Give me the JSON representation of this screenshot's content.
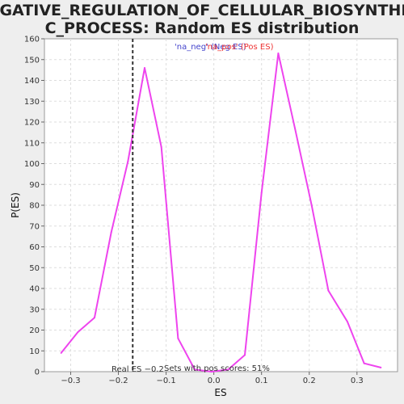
{
  "chart_data": {
    "type": "line",
    "title_lines": [
      "NEGATIVE_REGULATION_OF_CELLULAR_BIOSYNTHETI",
      "C_PROCESS: Random ES distribution"
    ],
    "xlabel": "ES",
    "ylabel": "P(ES)",
    "xlim": [
      -0.355,
      0.385
    ],
    "ylim": [
      0,
      160
    ],
    "xticks": [
      -0.3,
      -0.2,
      -0.1,
      0.0,
      0.1,
      0.2,
      0.3
    ],
    "xtick_labels": [
      "−0.3",
      "−0.2",
      "−0.1",
      "0.0",
      "0.1",
      "0.2",
      "0.3"
    ],
    "yticks": [
      0,
      10,
      20,
      30,
      40,
      50,
      60,
      70,
      80,
      90,
      100,
      110,
      120,
      130,
      140,
      150,
      160
    ],
    "ytick_labels": [
      "0",
      "10",
      "20",
      "30",
      "40",
      "50",
      "60",
      "70",
      "80",
      "90",
      "100",
      "110",
      "120",
      "130",
      "140",
      "150",
      "160"
    ],
    "grid": true,
    "legend": {
      "placement": "top",
      "entries": [
        {
          "text": "'na_neg' (Neg ES)",
          "color": "#4444cc"
        },
        {
          "text": "'na_pos' (Pos ES)",
          "color": "#ee3333"
        }
      ]
    },
    "series": [
      {
        "color": "#ee44ee",
        "x": [
          -0.32,
          -0.285,
          -0.25,
          -0.215,
          -0.18,
          -0.145,
          -0.11,
          -0.075,
          -0.04,
          -0.005,
          0.03,
          0.065,
          0.1,
          0.135,
          0.17,
          0.205,
          0.24,
          0.28,
          0.315,
          0.35
        ],
        "y": [
          9,
          19,
          26,
          67,
          101,
          146,
          108,
          16,
          1,
          0,
          1,
          8,
          86,
          153,
          117,
          80,
          39,
          24,
          4,
          2
        ]
      }
    ],
    "reference_line": {
      "x": -0.17,
      "style": "dashed",
      "color": "#333333"
    },
    "annotations": {
      "real_es": "Real ES −0.2",
      "pos_scores": "Sets with pos scores: 51%"
    }
  }
}
